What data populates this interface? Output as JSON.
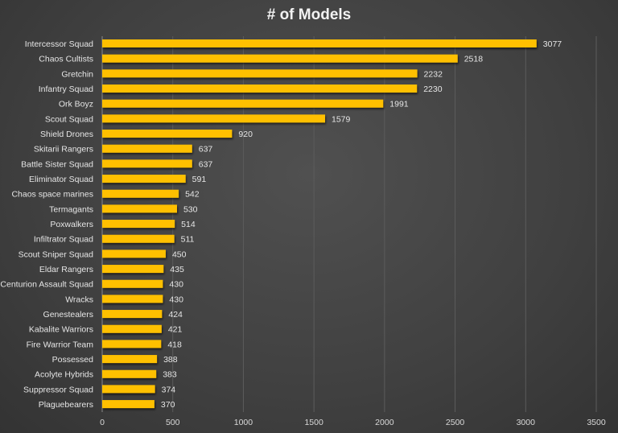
{
  "chart_data": {
    "type": "bar",
    "orientation": "horizontal",
    "title": "# of Models",
    "xlabel": "",
    "ylabel": "",
    "xlim": [
      0,
      3500
    ],
    "x_ticks": [
      0,
      500,
      1000,
      1500,
      2000,
      2500,
      3000,
      3500
    ],
    "grid": true,
    "legend": "none",
    "bar_color": "#FFC000",
    "background_color": "#404040",
    "categories": [
      "Intercessor Squad",
      "Chaos Cultists",
      "Gretchin",
      "Infantry Squad",
      "Ork Boyz",
      "Scout Squad",
      "Shield Drones",
      "Skitarii Rangers",
      "Battle Sister Squad",
      "Eliminator Squad",
      "Chaos space marines",
      "Termagants",
      "Poxwalkers",
      "Infiltrator Squad",
      "Scout Sniper Squad",
      "Eldar Rangers",
      "Centurion Assault Squad",
      "Wracks",
      "Genestealers",
      "Kabalite Warriors",
      "Fire Warrior Team",
      "Possessed",
      "Acolyte Hybrids",
      "Suppressor Squad",
      "Plaguebearers"
    ],
    "values": [
      3077,
      2518,
      2232,
      2230,
      1991,
      1579,
      920,
      637,
      637,
      591,
      542,
      530,
      514,
      511,
      450,
      435,
      430,
      430,
      424,
      421,
      418,
      388,
      383,
      374,
      370
    ]
  }
}
